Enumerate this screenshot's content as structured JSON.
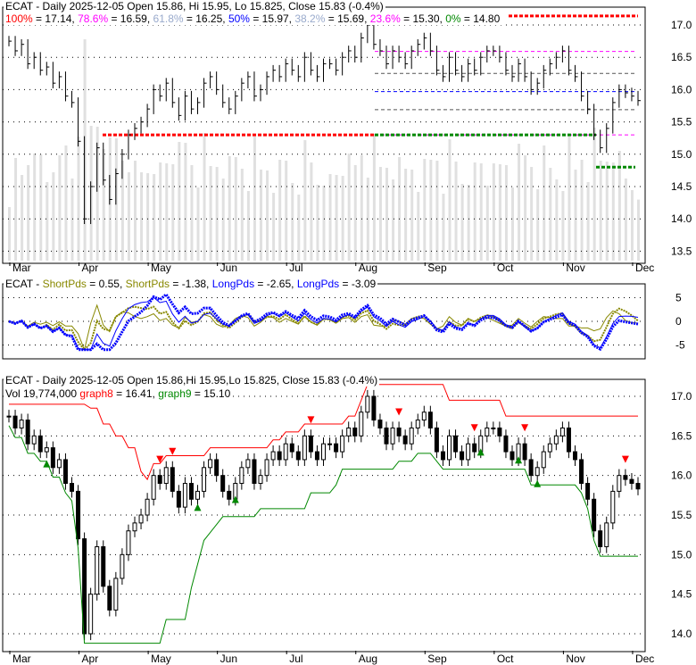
{
  "chart_data": [
    {
      "type": "line",
      "title": "ECAT - Daily 2025-12-05 Open 15.86, Hi 15.95, Lo 15.825, Close 15.83 (-0.4%)",
      "fib_levels": [
        {
          "label": "100%",
          "value": 17.14,
          "color": "#ff0000"
        },
        {
          "label": "78.6%",
          "value": 16.59,
          "color": "#ff00ff"
        },
        {
          "label": "61.8%",
          "value": 16.25,
          "color": "#99aacc"
        },
        {
          "label": "50%",
          "value": 15.97,
          "color": "#0000ff"
        },
        {
          "label": "38.2%",
          "value": 15.69,
          "color": "#99aacc"
        },
        {
          "label": "23.6%",
          "value": 15.3,
          "color": "#ff00ff"
        },
        {
          "label": "0%",
          "value": 14.8,
          "color": "#008800"
        }
      ],
      "yticks": [
        17.0,
        16.5,
        16.0,
        15.5,
        15.0,
        14.5,
        14.0,
        13.5
      ],
      "ylim": [
        13.3,
        17.4
      ]
    },
    {
      "type": "line",
      "title": "ECAT - ShortPds = 0.55, ShortPds = -1.38, LongPds = -2.65, LongPds = -3.09",
      "series": [
        {
          "name": "ShortPds",
          "value": "0.55"
        },
        {
          "name": "ShortPds",
          "value": "-1.38"
        },
        {
          "name": "LongPds",
          "value": "-2.65"
        },
        {
          "name": "LongPds",
          "value": "-3.09"
        }
      ],
      "yticks": [
        5,
        0,
        -5
      ]
    },
    {
      "type": "bar",
      "title": "ECAT - Daily 2025-12-05 Open 15.86,Hi 15.95,Lo 15.825, Close 15.83 (-0.4%)",
      "subtitle": "Vol 19,774,000",
      "graph8": "16.41",
      "graph9": "15.10",
      "yticks": [
        17.0,
        16.5,
        16.0,
        15.5,
        15.0,
        14.5,
        14.0
      ]
    }
  ],
  "months": [
    "Mar",
    "Apr",
    "May",
    "Jun",
    "Jul",
    "Aug",
    "Sep",
    "Oct",
    "Nov",
    "Dec"
  ],
  "month_index": [
    0,
    11,
    22,
    33,
    44,
    55,
    66,
    77,
    88,
    99
  ],
  "closes": [
    16.75,
    16.6,
    16.7,
    16.4,
    16.5,
    16.3,
    16.35,
    16.1,
    16.2,
    15.9,
    15.8,
    15.2,
    14.0,
    14.5,
    15.1,
    14.6,
    14.3,
    14.7,
    15.0,
    15.3,
    15.4,
    15.5,
    15.7,
    16.0,
    15.9,
    16.1,
    15.8,
    15.6,
    15.9,
    15.7,
    15.8,
    16.1,
    16.2,
    16.0,
    15.8,
    15.7,
    15.9,
    16.1,
    16.2,
    15.9,
    16.0,
    16.2,
    16.3,
    16.2,
    16.4,
    16.3,
    16.2,
    16.5,
    16.3,
    16.2,
    16.4,
    16.4,
    16.3,
    16.5,
    16.6,
    16.5,
    16.8,
    17.0,
    16.7,
    16.6,
    16.4,
    16.6,
    16.5,
    16.4,
    16.6,
    16.7,
    16.8,
    16.6,
    16.3,
    16.2,
    16.5,
    16.3,
    16.2,
    16.4,
    16.3,
    16.5,
    16.6,
    16.6,
    16.5,
    16.3,
    16.2,
    16.4,
    16.2,
    16.0,
    16.1,
    16.3,
    16.4,
    16.5,
    16.6,
    16.3,
    16.2,
    15.9,
    15.7,
    15.3,
    15.1,
    15.4,
    15.8,
    16.0,
    15.95,
    15.9,
    15.83
  ],
  "header1": {
    "fib_values": [
      "= 17.14, ",
      "= 16.59, ",
      "= 16.25, ",
      "= 15.97, ",
      "= 15.69, ",
      "= 15.30, ",
      "= 14.80"
    ]
  }
}
